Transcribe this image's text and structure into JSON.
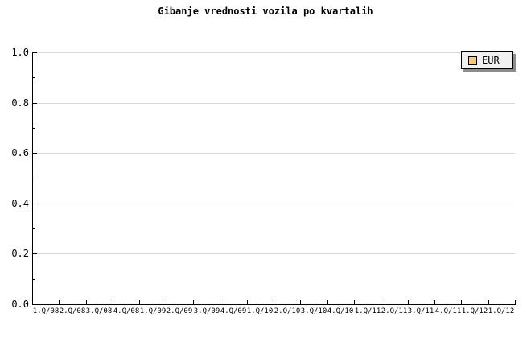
{
  "title": "Gibanje vrednosti vozila po kvartalih",
  "legend": {
    "label": "EUR",
    "swatch_color": "#FFC966"
  },
  "colors": {
    "background": "#FFFFFF",
    "axis": "#000000",
    "text": "#000000",
    "grid": "#D8D8D8",
    "legend_bg": "#F0F0F0",
    "legend_border": "#000000",
    "legend_shadow": "#8C8C8C"
  },
  "chart_data": {
    "type": "line",
    "title": "Gibanje vrednosti vozila po kvartalih",
    "xlabel": "",
    "ylabel": "",
    "x_categories": [
      "1.Q/08",
      "2.Q/08",
      "3.Q/08",
      "4.Q/08",
      "1.Q/09",
      "2.Q/09",
      "3.Q/09",
      "4.Q/09",
      "1.Q/10",
      "2.Q/10",
      "3.Q/10",
      "4.Q/10",
      "1.Q/11",
      "2.Q/11",
      "3.Q/11",
      "4.Q/11",
      "1.Q/12",
      "1.Q/12"
    ],
    "series": [
      {
        "name": "EUR",
        "color": "#FFC966",
        "values": []
      }
    ],
    "ylim": [
      0.0,
      1.0
    ],
    "y_ticks": [
      0.0,
      0.2,
      0.4,
      0.6,
      0.8,
      1.0
    ],
    "y_tick_labels": [
      "0.0",
      "0.2",
      "0.4",
      "0.6",
      "0.8",
      "1.0"
    ],
    "y_minor_ticks": [
      0.1,
      0.3,
      0.5,
      0.7,
      0.9
    ],
    "grid": "horizontal-major",
    "legend_position": "top-right"
  }
}
